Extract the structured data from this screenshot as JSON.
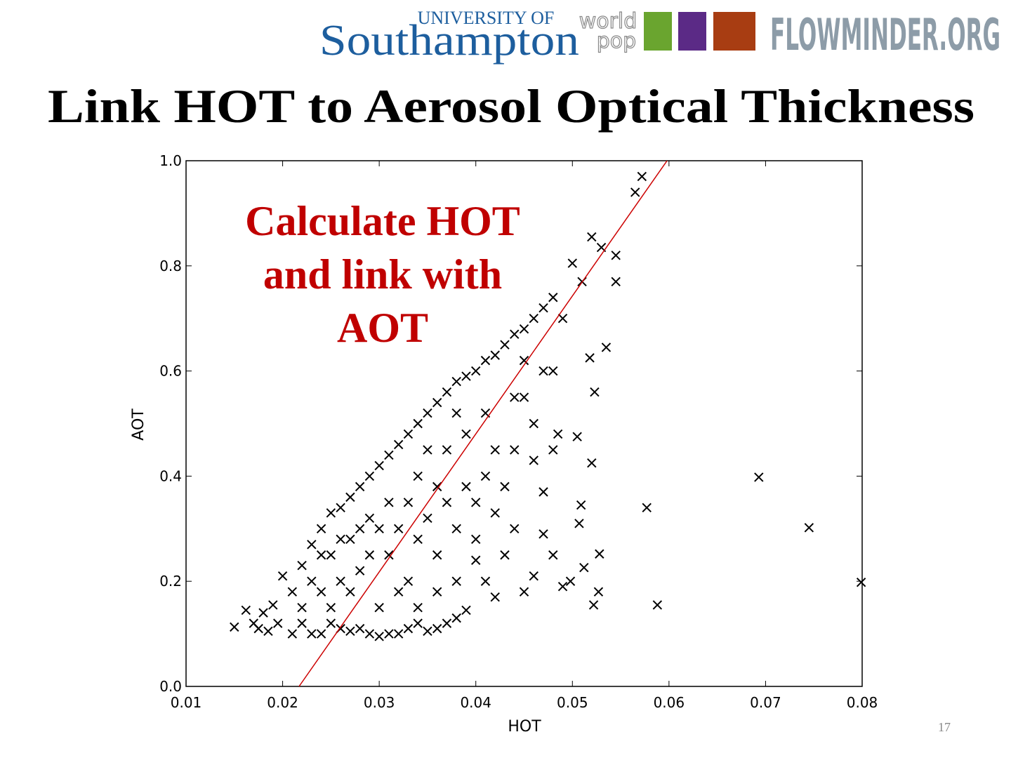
{
  "header": {
    "university_of": "UNIVERSITY OF",
    "southampton": "Southampton",
    "world": "world",
    "pop": "pop",
    "flowminder": "FLOWMINDER.ORG"
  },
  "page_number": "17",
  "chart_data": {
    "type": "scatter",
    "title": "Link HOT to Aerosol Optical Thickness",
    "annotation": [
      "Calculate HOT",
      "and link with",
      "AOT"
    ],
    "x_label": "HOT",
    "y_label": "AOT",
    "xlim": [
      0.01,
      0.08
    ],
    "ylim": [
      0,
      1
    ],
    "xticks": [
      0.01,
      0.02,
      0.03,
      0.04,
      0.05,
      0.06,
      0.07,
      0.08
    ],
    "yticks": [
      {
        "value": 0,
        "label": "0.0"
      },
      0.2,
      0.4,
      0.6,
      0.8,
      {
        "value": 1,
        "label": "1.0"
      }
    ],
    "grid": false,
    "marker": "x",
    "color": "#000000",
    "x": [
      0.015,
      0.0162,
      0.017,
      0.0175,
      0.018,
      0.0185,
      0.019,
      0.0195,
      0.02,
      0.021,
      0.022,
      0.023,
      0.024,
      0.025,
      0.026,
      0.027,
      0.028,
      0.029,
      0.03,
      0.031,
      0.032,
      0.033,
      0.034,
      0.035,
      0.036,
      0.037,
      0.038,
      0.039,
      0.04,
      0.041,
      0.042,
      0.043,
      0.044,
      0.045,
      0.046,
      0.047,
      0.048,
      0.049,
      0.05,
      0.051,
      0.052,
      0.053,
      0.0545,
      0.0545,
      0.0565,
      0.0572,
      0.0535,
      0.0523,
      0.0518,
      0.0505,
      0.052,
      0.0577,
      0.0693,
      0.0745,
      0.0799,
      0.0588,
      0.0522,
      0.0527,
      0.0528,
      0.0512,
      0.0507,
      0.0509,
      0.0498,
      0.049,
      0.048,
      0.047,
      0.046,
      0.045,
      0.044,
      0.043,
      0.042,
      0.041,
      0.04,
      0.039,
      0.038,
      0.037,
      0.036,
      0.035,
      0.034,
      0.033,
      0.032,
      0.031,
      0.03,
      0.029,
      0.028,
      0.027,
      0.026,
      0.025,
      0.024,
      0.023,
      0.022,
      0.046,
      0.047,
      0.048,
      0.0485,
      0.047,
      0.048,
      0.046,
      0.045,
      0.044,
      0.043,
      0.042,
      0.041,
      0.04,
      0.039,
      0.038,
      0.037,
      0.036,
      0.035,
      0.034,
      0.033,
      0.032,
      0.031,
      0.03,
      0.029,
      0.028,
      0.027,
      0.026,
      0.025,
      0.024,
      0.023,
      0.022,
      0.021,
      0.036,
      0.038,
      0.039,
      0.037,
      0.035,
      0.034,
      0.033,
      0.031,
      0.029,
      0.028,
      0.03,
      0.032,
      0.034,
      0.036,
      0.038,
      0.04,
      0.042,
      0.044,
      0.045,
      0.041,
      0.027,
      0.025,
      0.024,
      0.026
    ],
    "y": [
      0.113,
      0.145,
      0.12,
      0.11,
      0.14,
      0.105,
      0.155,
      0.12,
      0.21,
      0.1,
      0.23,
      0.27,
      0.3,
      0.33,
      0.34,
      0.36,
      0.38,
      0.4,
      0.42,
      0.44,
      0.46,
      0.48,
      0.5,
      0.52,
      0.54,
      0.56,
      0.58,
      0.59,
      0.6,
      0.62,
      0.63,
      0.65,
      0.67,
      0.68,
      0.7,
      0.72,
      0.74,
      0.7,
      0.805,
      0.77,
      0.855,
      0.835,
      0.82,
      0.77,
      0.94,
      0.97,
      0.645,
      0.56,
      0.625,
      0.475,
      0.425,
      0.34,
      0.398,
      0.302,
      0.198,
      0.155,
      0.155,
      0.18,
      0.252,
      0.226,
      0.31,
      0.345,
      0.2,
      0.19,
      0.25,
      0.29,
      0.21,
      0.18,
      0.3,
      0.25,
      0.17,
      0.2,
      0.24,
      0.145,
      0.13,
      0.12,
      0.11,
      0.105,
      0.12,
      0.11,
      0.1,
      0.1,
      0.095,
      0.1,
      0.11,
      0.105,
      0.11,
      0.12,
      0.1,
      0.1,
      0.12,
      0.43,
      0.37,
      0.45,
      0.48,
      0.6,
      0.6,
      0.5,
      0.55,
      0.45,
      0.38,
      0.33,
      0.4,
      0.35,
      0.48,
      0.52,
      0.45,
      0.38,
      0.32,
      0.28,
      0.35,
      0.3,
      0.25,
      0.3,
      0.25,
      0.22,
      0.28,
      0.2,
      0.25,
      0.18,
      0.2,
      0.15,
      0.18,
      0.25,
      0.3,
      0.38,
      0.35,
      0.45,
      0.4,
      0.2,
      0.35,
      0.32,
      0.3,
      0.15,
      0.18,
      0.15,
      0.18,
      0.2,
      0.28,
      0.45,
      0.55,
      0.62,
      0.52,
      0.18,
      0.15,
      0.25,
      0.28
    ],
    "fit": {
      "color": "#cc0000",
      "x": [
        0.0217,
        0.0598
      ],
      "y": [
        0,
        1
      ]
    }
  }
}
